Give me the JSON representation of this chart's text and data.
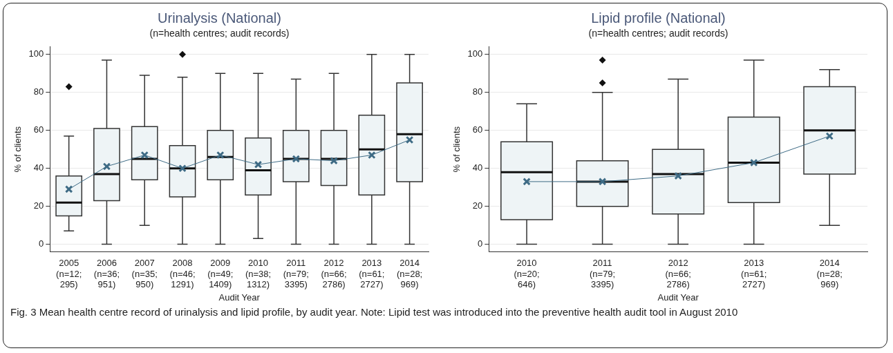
{
  "chart_data": [
    {
      "type": "box",
      "title": "Urinalysis (National)",
      "subtitle": "(n=health centres; audit records)",
      "xlabel": "Audit Year",
      "ylabel": "% of clients",
      "categories": [
        "2005\n(n=12;\n295)",
        "2006\n(n=36;\n951)",
        "2007\n(n=35;\n950)",
        "2008\n(n=46;\n1291)",
        "2009\n(n=49;\n1409)",
        "2010\n(n=38;\n1312)",
        "2011\n(n=79;\n3395)",
        "2012\n(n=66;\n2786)",
        "2013\n(n=61;\n2727)",
        "2014\n(n=28;\n969)"
      ],
      "ylim": [
        -4,
        104
      ],
      "yticks": [
        0,
        20,
        40,
        60,
        80,
        100
      ],
      "grid": "y",
      "series": [
        {
          "type": "box",
          "color": "#eef4f6",
          "boxes": [
            {
              "low": 7,
              "q1": 15,
              "median": 22,
              "q3": 36,
              "high": 57,
              "outliers": [
                83
              ]
            },
            {
              "low": 0,
              "q1": 23,
              "median": 37,
              "q3": 61,
              "high": 97
            },
            {
              "low": 10,
              "q1": 34,
              "median": 45,
              "q3": 62,
              "high": 89
            },
            {
              "low": 0,
              "q1": 25,
              "median": 40,
              "q3": 52,
              "high": 88,
              "outliers": [
                100
              ]
            },
            {
              "low": 0,
              "q1": 34,
              "median": 46,
              "q3": 60,
              "high": 90
            },
            {
              "low": 3,
              "q1": 26,
              "median": 39,
              "q3": 56,
              "high": 90
            },
            {
              "low": 0,
              "q1": 33,
              "median": 45,
              "q3": 60,
              "high": 87
            },
            {
              "low": 0,
              "q1": 31,
              "median": 45,
              "q3": 60,
              "high": 90
            },
            {
              "low": 0,
              "q1": 26,
              "median": 50,
              "q3": 68,
              "high": 100
            },
            {
              "low": 0,
              "q1": 33,
              "median": 58,
              "q3": 85,
              "high": 100
            }
          ]
        },
        {
          "type": "line",
          "color": "#3e6b85",
          "marker": "cross",
          "values": [
            29,
            41,
            47,
            40,
            47,
            42,
            45,
            44,
            47,
            55
          ]
        }
      ],
      "annotations": [
        "Fig. 3 Mean health centre record of urinalysis and lipid profile, by audit year. Note: Lipid test was introduced into the preventive health audit tool in August 2010"
      ]
    },
    {
      "type": "box",
      "title": "Lipid profile (National)",
      "subtitle": "(n=health centres; audit records)",
      "xlabel": "Audit Year",
      "ylabel": "% of clients",
      "categories": [
        "2010\n(n=20;\n646)",
        "2011\n(n=79;\n3395)",
        "2012\n(n=66;\n2786)",
        "2013\n(n=61;\n2727)",
        "2014\n(n=28;\n969)"
      ],
      "ylim": [
        -4,
        104
      ],
      "yticks": [
        0,
        20,
        40,
        60,
        80,
        100
      ],
      "grid": "y",
      "series": [
        {
          "type": "box",
          "color": "#eef4f6",
          "boxes": [
            {
              "low": 0,
              "q1": 13,
              "median": 38,
              "q3": 54,
              "high": 74
            },
            {
              "low": 0,
              "q1": 20,
              "median": 33,
              "q3": 44,
              "high": 80,
              "outliers": [
                85,
                97
              ]
            },
            {
              "low": 0,
              "q1": 16,
              "median": 37,
              "q3": 50,
              "high": 87
            },
            {
              "low": 0,
              "q1": 22,
              "median": 43,
              "q3": 67,
              "high": 97
            },
            {
              "low": 10,
              "q1": 37,
              "median": 60,
              "q3": 83,
              "high": 92
            }
          ]
        },
        {
          "type": "line",
          "color": "#3e6b85",
          "marker": "cross",
          "values": [
            33,
            33,
            36,
            43,
            57
          ]
        }
      ]
    }
  ]
}
